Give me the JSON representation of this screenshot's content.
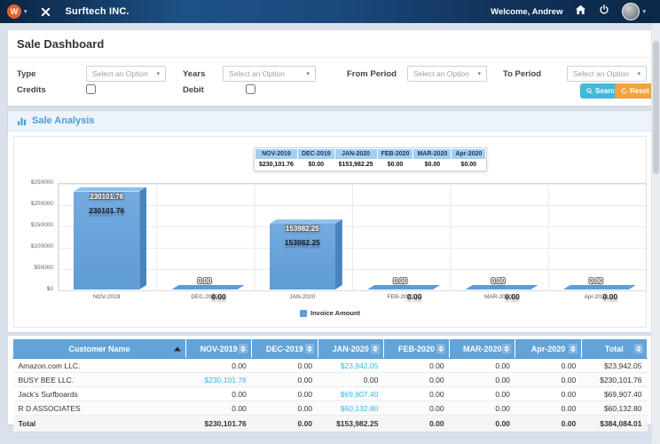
{
  "navbar": {
    "brand": "Surftech INC.",
    "welcome": "Welcome, Andrew"
  },
  "filters": {
    "title": "Sale Dashboard",
    "type_label": "Type",
    "years_label": "Years",
    "from_period_label": "From Period",
    "to_period_label": "To Period",
    "credits_label": "Credits",
    "debit_label": "Debit",
    "select_placeholder": "Select an Option",
    "search_label": "Search",
    "reset_label": "Reset"
  },
  "analysis": {
    "title": "Sale Analysis"
  },
  "chart_data": {
    "type": "bar",
    "title": "Sale Analysis",
    "categories": [
      "NOV-2019",
      "DEC-2019",
      "JAN-2020",
      "FEB-2020",
      "MAR-2020",
      "Apr-2020"
    ],
    "values": [
      230101.76,
      0,
      153982.25,
      0,
      0,
      0
    ],
    "value_labels": [
      "230101.76",
      "0.00",
      "153982.25",
      "0.00",
      "0.00",
      "0.00"
    ],
    "tooltip_values": [
      "$230,101.76",
      "$0.00",
      "$153,982.25",
      "$0.00",
      "$0.00",
      "$0.00"
    ],
    "series_name": "Invoice Amount",
    "legend": "Invoice Amount",
    "y_ticks": [
      "$0",
      "$50000",
      "$100000",
      "$150000",
      "$200000",
      "$250000"
    ],
    "ylim": [
      0,
      250000
    ],
    "grid": true,
    "legend_position": "bottom",
    "bar_color": "#5f9cd8"
  },
  "table": {
    "columns": [
      "Customer Name",
      "NOV-2019",
      "DEC-2019",
      "JAN-2020",
      "FEB-2020",
      "MAR-2020",
      "Apr-2020",
      "Total"
    ],
    "sorted_column": "Customer Name",
    "sort_direction": "asc",
    "rows": [
      {
        "name": "Amazon.com LLC.",
        "values": [
          "0.00",
          "0.00",
          "$23,942.05",
          "0.00",
          "0.00",
          "0.00",
          "$23,942.05"
        ],
        "links": [
          false,
          false,
          true,
          false,
          false,
          false,
          false
        ]
      },
      {
        "name": "BUSY BEE LLC.",
        "values": [
          "$230,101.76",
          "0.00",
          "0.00",
          "0.00",
          "0.00",
          "0.00",
          "$230,101.76"
        ],
        "links": [
          true,
          false,
          false,
          false,
          false,
          false,
          false
        ]
      },
      {
        "name": "Jack's Surfboards",
        "values": [
          "0.00",
          "0.00",
          "$69,907.40",
          "0.00",
          "0.00",
          "0.00",
          "$69,907.40"
        ],
        "links": [
          false,
          false,
          true,
          false,
          false,
          false,
          false
        ]
      },
      {
        "name": "R D ASSOCIATES",
        "values": [
          "0.00",
          "0.00",
          "$60,132.80",
          "0.00",
          "0.00",
          "0.00",
          "$60,132.80"
        ],
        "links": [
          false,
          false,
          true,
          false,
          false,
          false,
          false
        ]
      }
    ],
    "total_row": {
      "name": "Total",
      "values": [
        "$230,101.76",
        "0.00",
        "$153,982.25",
        "0.00",
        "0.00",
        "0.00",
        "$384,084.01"
      ]
    }
  },
  "colors": {
    "navbar": "#14406e",
    "accent_blue": "#62a4da",
    "link_blue": "#35b6e5",
    "search_button": "#41b9d9",
    "reset_button": "#f2a33c",
    "bar": "#5f9cd8",
    "section_title": "#4b9cd8"
  }
}
